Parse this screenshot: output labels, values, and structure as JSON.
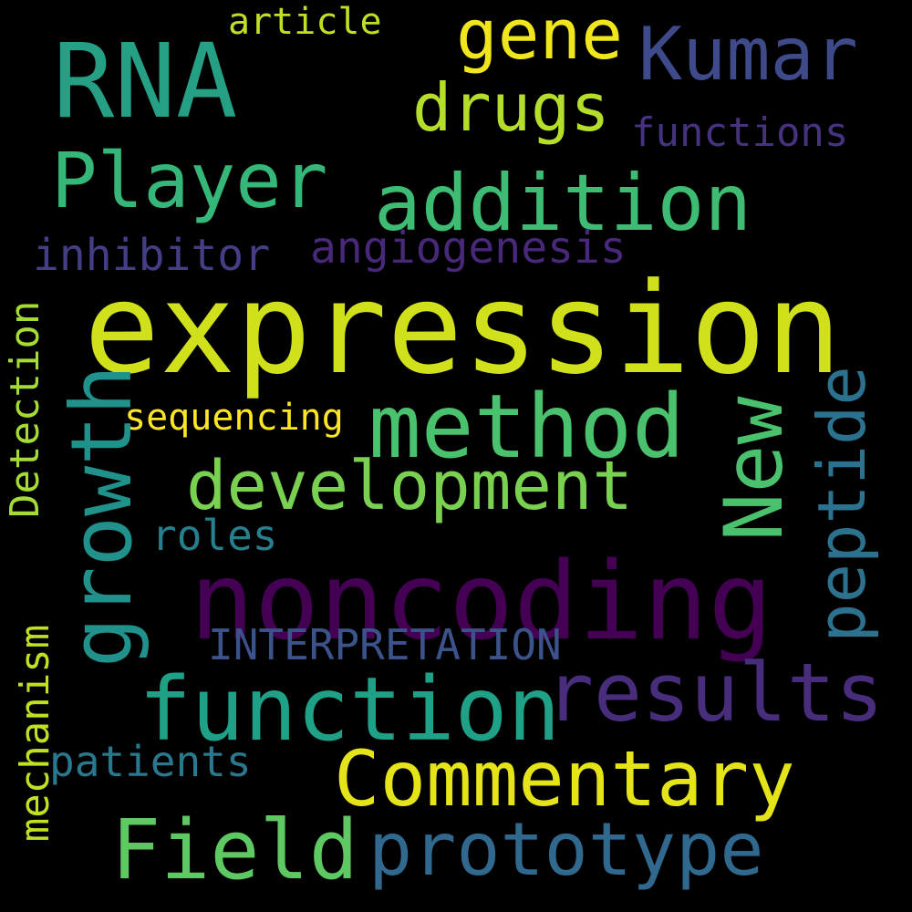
{
  "word_cloud": {
    "background": "#000000",
    "words": [
      {
        "id": "expression",
        "text": "expression",
        "color": "#d0e11c",
        "orientation": "horizontal"
      },
      {
        "id": "noncoding",
        "text": "noncoding",
        "color": "#440154",
        "orientation": "horizontal"
      },
      {
        "id": "rna",
        "text": "RNA",
        "color": "#26a085",
        "orientation": "horizontal"
      },
      {
        "id": "kumar",
        "text": "Kumar",
        "color": "#3e4a89",
        "orientation": "horizontal"
      },
      {
        "id": "gene",
        "text": "gene",
        "color": "#f1e51d",
        "orientation": "horizontal"
      },
      {
        "id": "drugs",
        "text": "drugs",
        "color": "#b5de2b",
        "orientation": "horizontal"
      },
      {
        "id": "article",
        "text": "article",
        "color": "#c0df25",
        "orientation": "horizontal"
      },
      {
        "id": "functions",
        "text": "functions",
        "color": "#46327e",
        "orientation": "horizontal"
      },
      {
        "id": "player",
        "text": "Player",
        "color": "#35b779",
        "orientation": "horizontal"
      },
      {
        "id": "addition",
        "text": "addition",
        "color": "#3ebc74",
        "orientation": "horizontal"
      },
      {
        "id": "inhibitor",
        "text": "inhibitor",
        "color": "#433e85",
        "orientation": "horizontal"
      },
      {
        "id": "angiogenesis",
        "text": "angiogenesis",
        "color": "#482878",
        "orientation": "horizontal"
      },
      {
        "id": "method",
        "text": "method",
        "color": "#4ac16d",
        "orientation": "horizontal"
      },
      {
        "id": "sequencing",
        "text": "sequencing",
        "color": "#fde725",
        "orientation": "horizontal"
      },
      {
        "id": "development",
        "text": "development",
        "color": "#7ad151",
        "orientation": "horizontal"
      },
      {
        "id": "roles",
        "text": "roles",
        "color": "#277f8e",
        "orientation": "horizontal"
      },
      {
        "id": "interpretation",
        "text": "INTERPRETATION",
        "color": "#3b528b",
        "orientation": "horizontal"
      },
      {
        "id": "function",
        "text": "function",
        "color": "#1fa187",
        "orientation": "horizontal"
      },
      {
        "id": "results",
        "text": "results",
        "color": "#472d7b",
        "orientation": "horizontal"
      },
      {
        "id": "commentary",
        "text": "Commentary",
        "color": "#e5e419",
        "orientation": "horizontal"
      },
      {
        "id": "patients",
        "text": "patients",
        "color": "#2a788e",
        "orientation": "horizontal"
      },
      {
        "id": "field",
        "text": "Field",
        "color": "#5ec962",
        "orientation": "horizontal"
      },
      {
        "id": "prototype",
        "text": "prototype",
        "color": "#31688e",
        "orientation": "horizontal"
      },
      {
        "id": "growth",
        "text": "growth",
        "color": "#21918c",
        "orientation": "vertical"
      },
      {
        "id": "new",
        "text": "New",
        "color": "#4ac16d",
        "orientation": "vertical"
      },
      {
        "id": "peptide",
        "text": "peptide",
        "color": "#2c728e",
        "orientation": "vertical"
      },
      {
        "id": "detection",
        "text": "Detection",
        "color": "#a5db36",
        "orientation": "vertical"
      },
      {
        "id": "mechanism",
        "text": "mechanism",
        "color": "#c2df23",
        "orientation": "vertical"
      }
    ]
  }
}
